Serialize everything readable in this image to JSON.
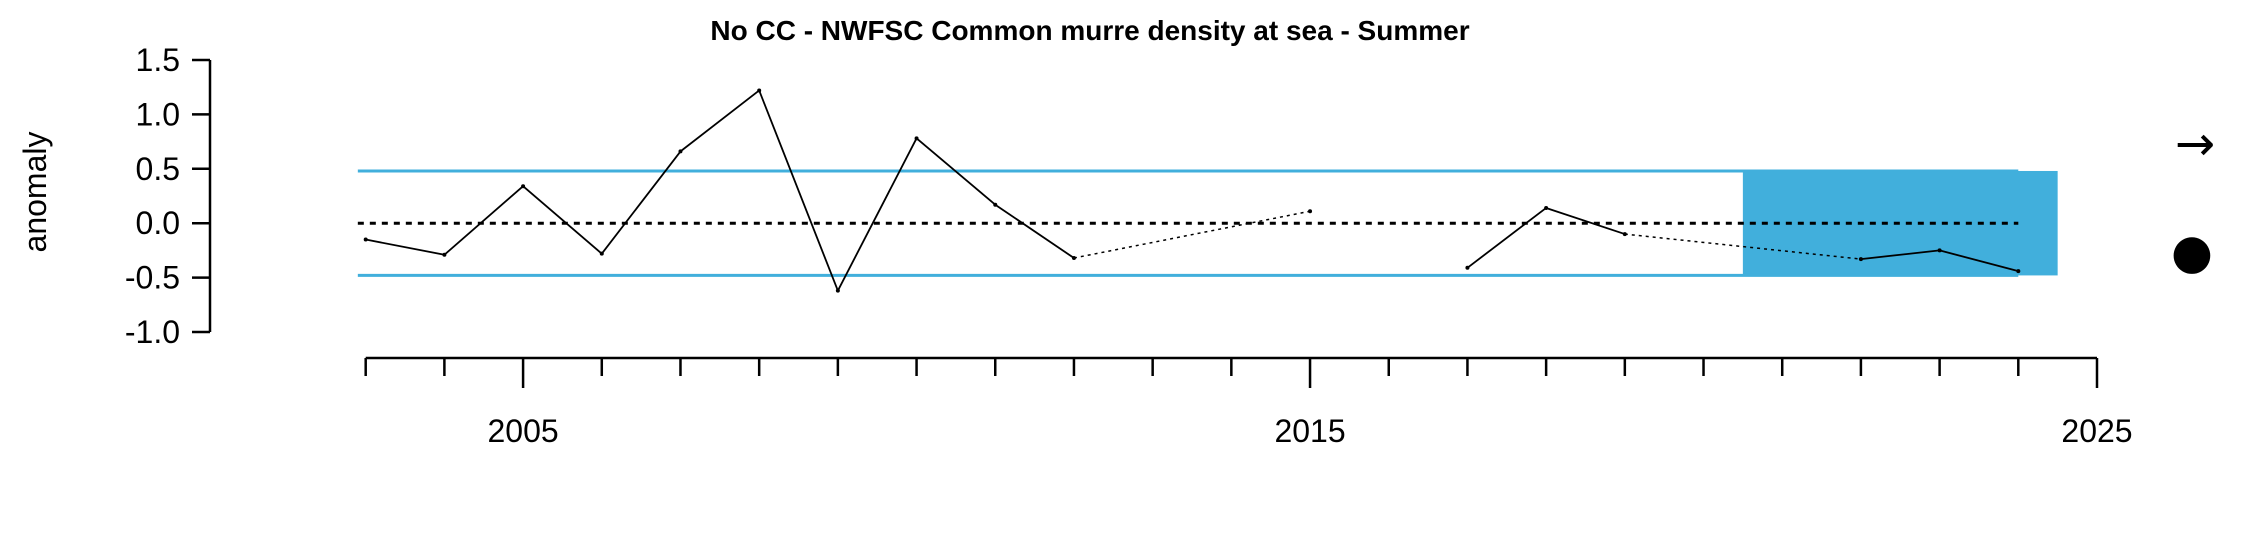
{
  "chart_data": {
    "type": "line",
    "title": "No CC - NWFSC Common murre density at sea - Summer",
    "ylabel": "anomaly",
    "xlabel": "",
    "xlim": [
      2002,
      2025
    ],
    "ylim": [
      -1.0,
      1.5
    ],
    "y_ticks": [
      1.5,
      1.0,
      0.5,
      0.0,
      -0.5,
      -1.0
    ],
    "y_tick_labels": [
      "1.5",
      "1.0",
      "0.5",
      "0.0",
      "-0.5",
      "-1.0"
    ],
    "x_major_ticks": [
      2005,
      2015,
      2025
    ],
    "x_minor_ticks": [
      2003,
      2004,
      2005,
      2006,
      2007,
      2008,
      2009,
      2010,
      2011,
      2012,
      2013,
      2014,
      2015,
      2016,
      2017,
      2018,
      2019,
      2020,
      2021,
      2022,
      2023,
      2024,
      2025
    ],
    "mean": 0.0,
    "sd_band": [
      -0.48,
      0.48
    ],
    "highlight_period": [
      2020.5,
      2024.5
    ],
    "series": [
      {
        "x": [
          2003,
          2004,
          2005,
          2006,
          2007,
          2008,
          2009,
          2010,
          2011,
          2012,
          2015,
          2017,
          2018,
          2019,
          2022,
          2023,
          2024
        ],
        "values": [
          -0.15,
          -0.29,
          0.34,
          -0.28,
          0.66,
          1.22,
          -0.62,
          0.78,
          0.17,
          -0.32,
          0.11,
          -0.41,
          0.14,
          -0.1,
          -0.33,
          -0.25,
          -0.44
        ]
      }
    ],
    "gap_connectors": [
      {
        "x": [
          2012,
          2015
        ],
        "values": [
          -0.32,
          0.11
        ]
      },
      {
        "x": [
          2019,
          2022
        ],
        "values": [
          -0.1,
          -0.33
        ]
      }
    ],
    "trend_indicator": "→",
    "mean_indicator": "●",
    "colors": {
      "line": "#000000",
      "band": "#41afdc",
      "highlight": "#41afdc",
      "mean_line": "#000000"
    }
  }
}
